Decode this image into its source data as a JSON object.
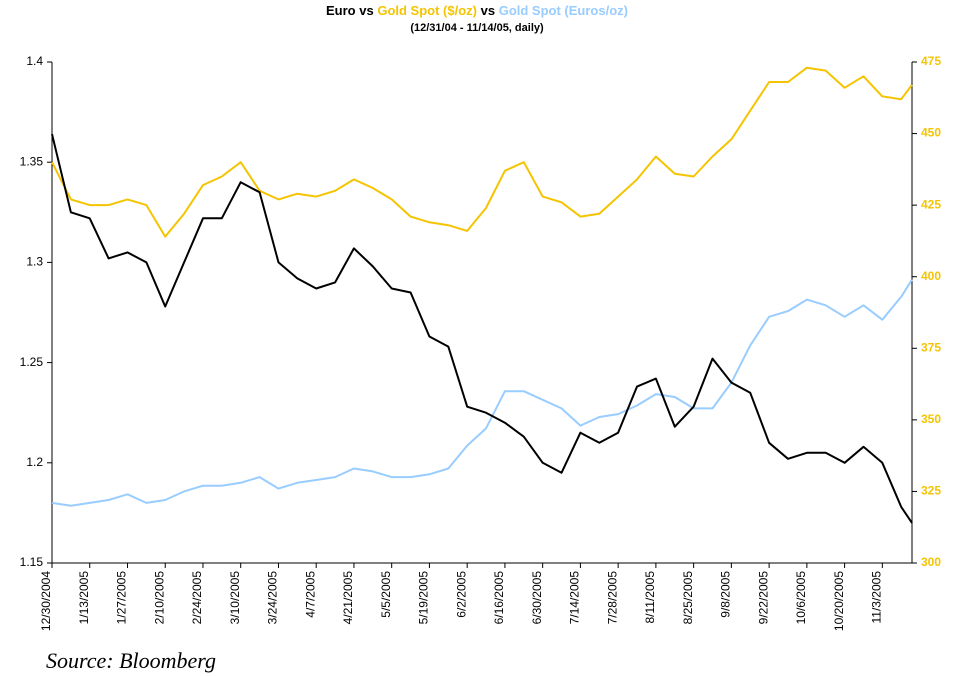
{
  "chart_data": {
    "type": "line",
    "title_connector": "vs",
    "subtitle": "(12/31/04 - 11/14/05, daily)",
    "source": "Source: Bloomberg",
    "xlim": [
      "12/30/2004",
      "11/14/2005"
    ],
    "xticks": [
      "12/30/2004",
      "1/13/2005",
      "1/27/2005",
      "2/10/2005",
      "2/24/2005",
      "3/10/2005",
      "3/24/2005",
      "4/7/2005",
      "4/21/2005",
      "5/5/2005",
      "5/19/2005",
      "6/2/2005",
      "6/16/2005",
      "6/30/2005",
      "7/14/2005",
      "7/28/2005",
      "8/11/2005",
      "8/25/2005",
      "9/8/2005",
      "9/22/2005",
      "10/6/2005",
      "10/20/2005",
      "11/3/2005"
    ],
    "ylim": [
      1.15,
      1.4
    ],
    "yticks": [
      1.15,
      1.2,
      1.25,
      1.3,
      1.35,
      1.4
    ],
    "y2lim": [
      300,
      475
    ],
    "y2ticks": [
      300,
      325,
      350,
      375,
      400,
      425,
      450,
      475
    ],
    "y2_color": "#f5c400",
    "x": [
      "12/30/2004",
      "1/6/2005",
      "1/13/2005",
      "1/20/2005",
      "1/27/2005",
      "2/3/2005",
      "2/10/2005",
      "2/17/2005",
      "2/24/2005",
      "3/3/2005",
      "3/10/2005",
      "3/17/2005",
      "3/24/2005",
      "3/31/2005",
      "4/7/2005",
      "4/14/2005",
      "4/21/2005",
      "4/28/2005",
      "5/5/2005",
      "5/12/2005",
      "5/19/2005",
      "5/26/2005",
      "6/2/2005",
      "6/9/2005",
      "6/16/2005",
      "6/23/2005",
      "6/30/2005",
      "7/7/2005",
      "7/14/2005",
      "7/21/2005",
      "7/28/2005",
      "8/4/2005",
      "8/11/2005",
      "8/18/2005",
      "8/25/2005",
      "9/1/2005",
      "9/8/2005",
      "9/15/2005",
      "9/22/2005",
      "9/29/2005",
      "10/6/2005",
      "10/13/2005",
      "10/20/2005",
      "10/27/2005",
      "11/3/2005",
      "11/10/2005",
      "11/14/2005"
    ],
    "series": [
      {
        "name": "Euro",
        "color": "#000000",
        "values": [
          1.364,
          1.325,
          1.322,
          1.302,
          1.305,
          1.3,
          1.278,
          1.3,
          1.322,
          1.322,
          1.34,
          1.335,
          1.3,
          1.292,
          1.287,
          1.29,
          1.307,
          1.298,
          1.287,
          1.285,
          1.263,
          1.258,
          1.228,
          1.225,
          1.22,
          1.213,
          1.2,
          1.195,
          1.215,
          1.21,
          1.215,
          1.238,
          1.242,
          1.218,
          1.228,
          1.252,
          1.24,
          1.235,
          1.21,
          1.202,
          1.205,
          1.205,
          1.2,
          1.208,
          1.2,
          1.178,
          1.17
        ]
      },
      {
        "name": "Gold Spot ($/oz)",
        "color": "#f5c400",
        "axis": "y2",
        "values": [
          440,
          427,
          425,
          425,
          427,
          425,
          414,
          422,
          432,
          435,
          440,
          430,
          427,
          429,
          428,
          430,
          434,
          431,
          427,
          421,
          419,
          418,
          416,
          424,
          437,
          440,
          428,
          426,
          421,
          422,
          428,
          434,
          442,
          436,
          435,
          442,
          448,
          458,
          468,
          468,
          473,
          472,
          466,
          470,
          463,
          462,
          467
        ]
      },
      {
        "name": "Gold Spot (Euros/oz)",
        "color": "#99ccff",
        "axis": "y2",
        "values": [
          321,
          320,
          321,
          322,
          324,
          321,
          322,
          325,
          327,
          327,
          328,
          330,
          326,
          328,
          329,
          330,
          333,
          332,
          330,
          330,
          331,
          333,
          341,
          347,
          360,
          360,
          357,
          354,
          348,
          351,
          352,
          355,
          359,
          358,
          354,
          354,
          363,
          376,
          386,
          388,
          392,
          390,
          386,
          390,
          385,
          393,
          399
        ]
      }
    ]
  }
}
